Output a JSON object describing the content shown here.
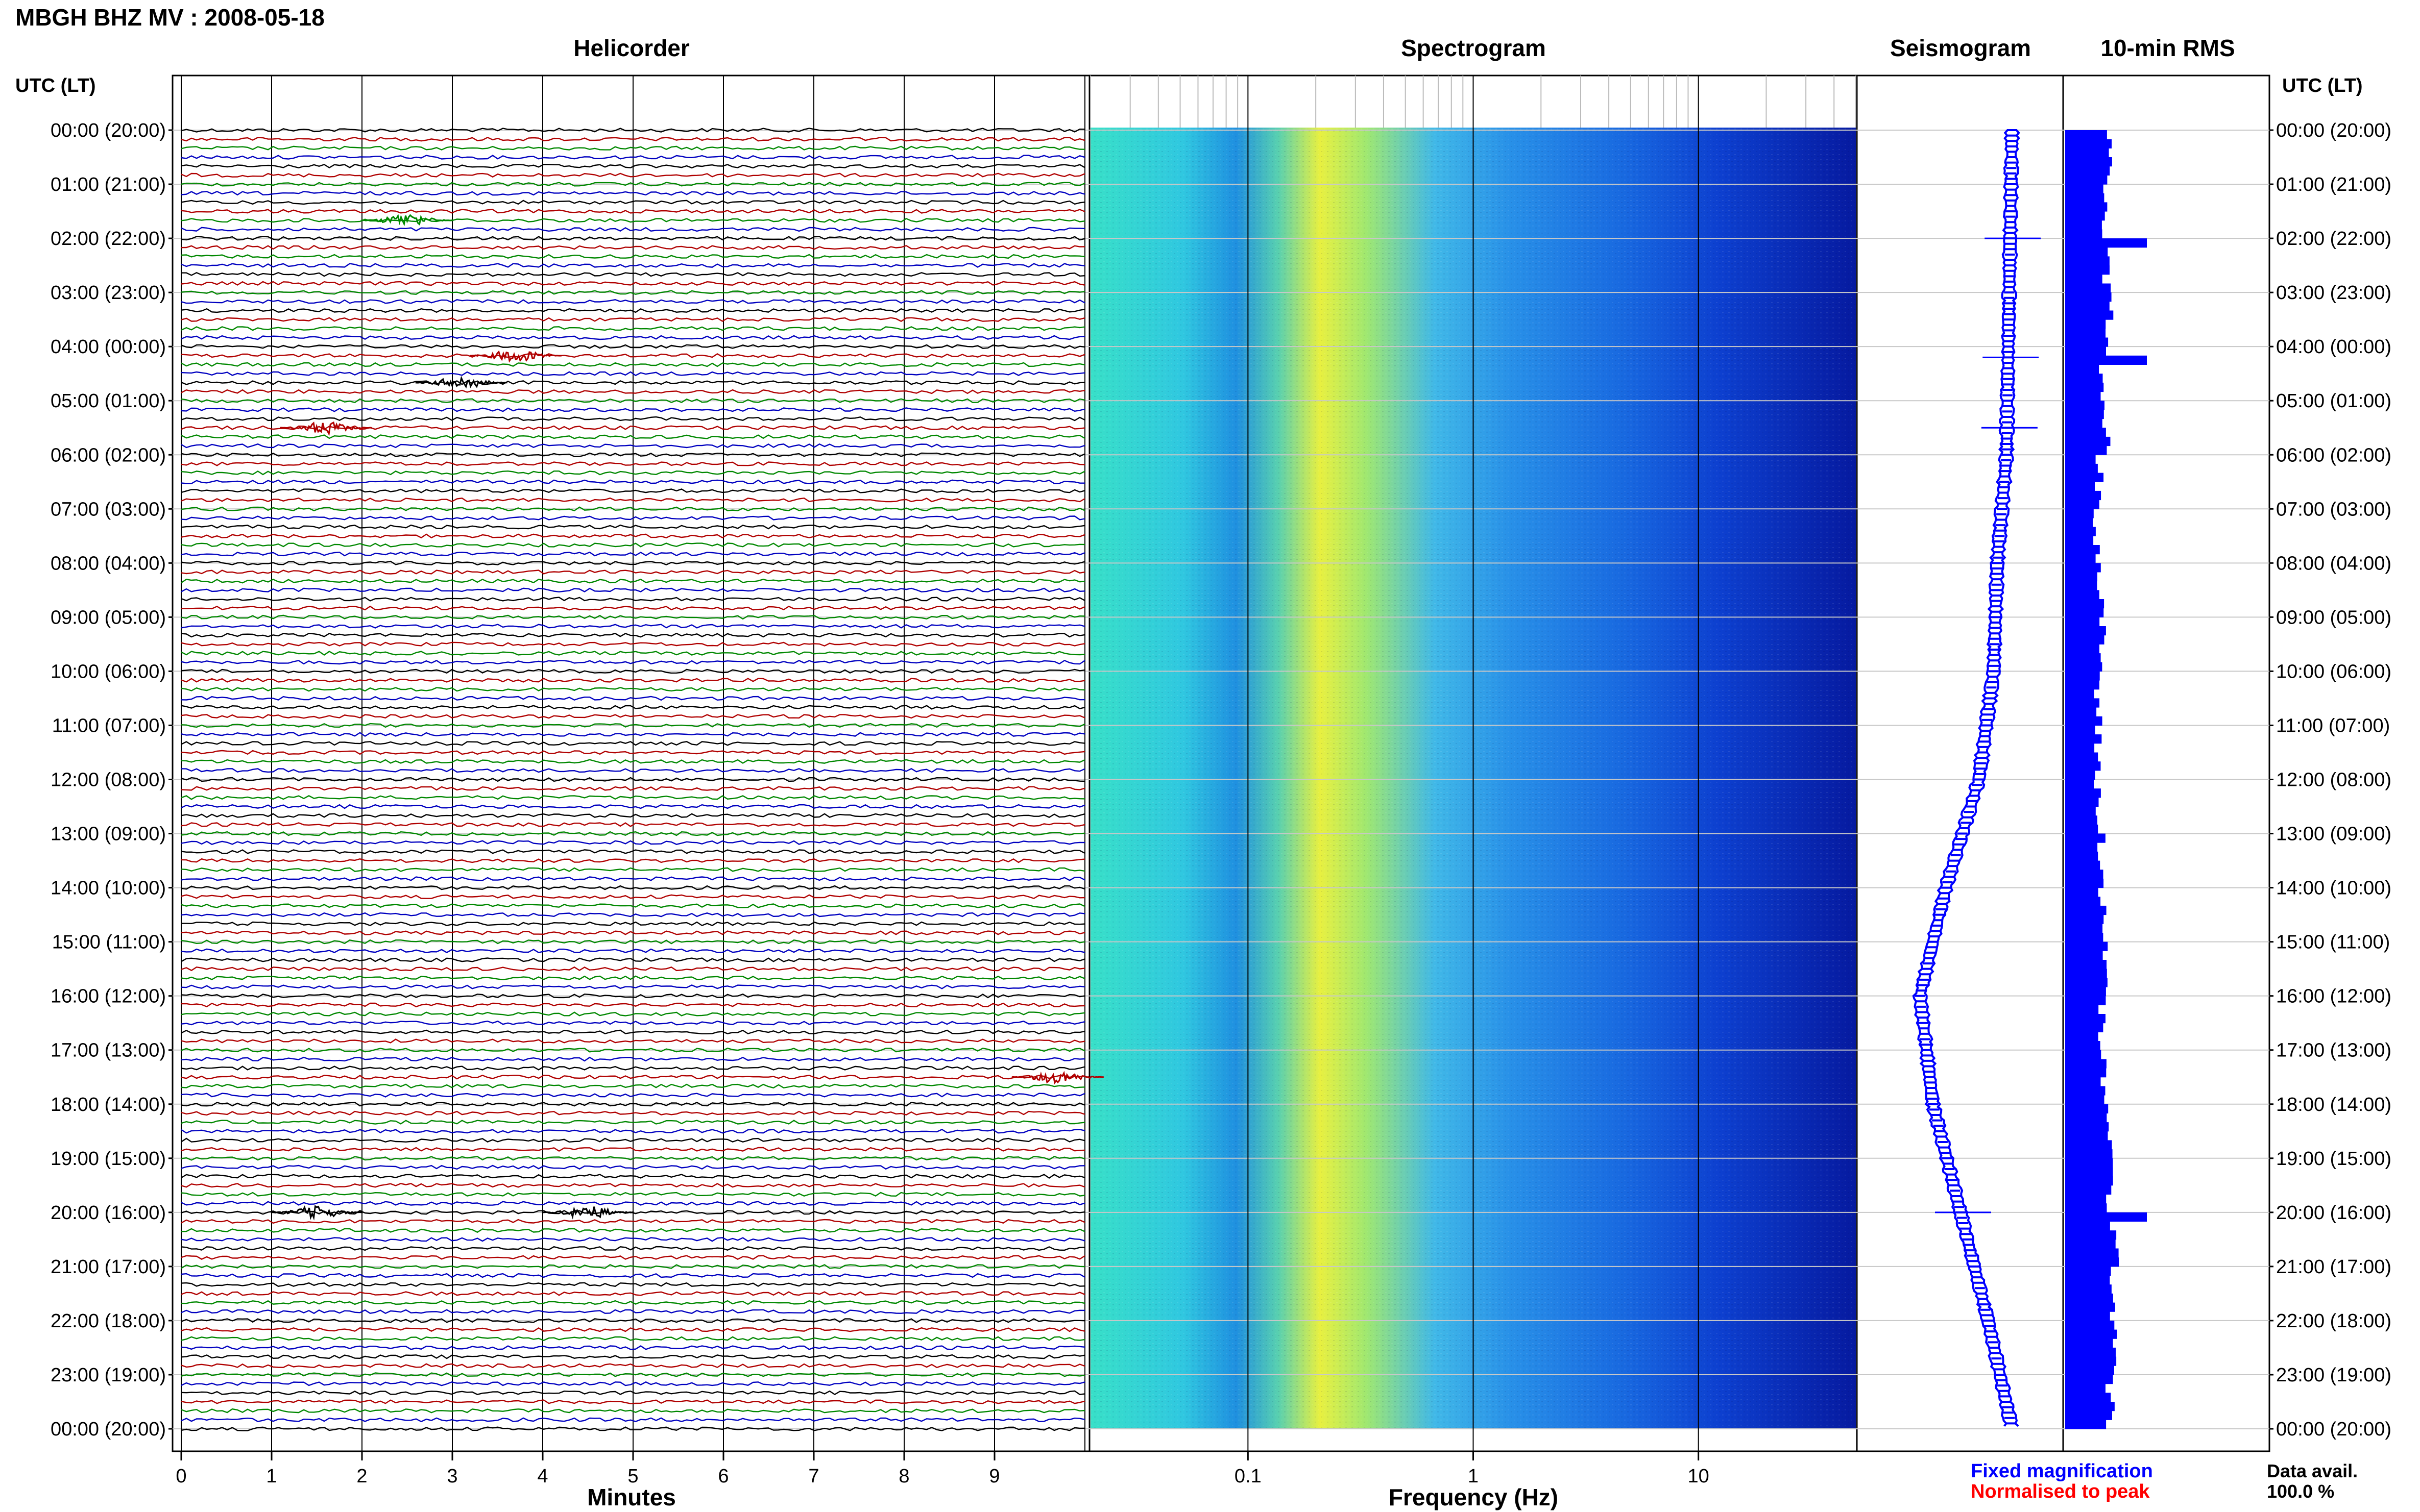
{
  "header": {
    "title": "MBGH BHZ MV : 2008-05-18",
    "left_axis_label": "UTC (LT)",
    "right_axis_label": "UTC (LT)"
  },
  "panels": {
    "helicorder": "Helicorder",
    "spectrogram": "Spectrogram",
    "seismogram": "Seismogram",
    "rms": "10-min RMS"
  },
  "axes": {
    "helicorder_xlabel": "Minutes",
    "helicorder_ticks": [
      "0",
      "1",
      "2",
      "3",
      "4",
      "5",
      "6",
      "7",
      "8",
      "9"
    ],
    "spectrogram_xlabel": "Frequency (Hz)",
    "spectrogram_ticks": [
      "0.1",
      "1",
      "10"
    ]
  },
  "time_labels": [
    "00:00 (20:00)",
    "01:00 (21:00)",
    "02:00 (22:00)",
    "03:00 (23:00)",
    "04:00 (00:00)",
    "05:00 (01:00)",
    "06:00 (02:00)",
    "07:00 (03:00)",
    "08:00 (04:00)",
    "09:00 (05:00)",
    "10:00 (06:00)",
    "11:00 (07:00)",
    "12:00 (08:00)",
    "13:00 (09:00)",
    "14:00 (10:00)",
    "15:00 (11:00)",
    "16:00 (12:00)",
    "17:00 (13:00)",
    "18:00 (14:00)",
    "19:00 (15:00)",
    "20:00 (16:00)",
    "21:00 (17:00)",
    "22:00 (18:00)",
    "23:00 (19:00)",
    "00:00 (20:00)"
  ],
  "legend": {
    "fixed": "Fixed magnification",
    "normalised": "Normalised to peak",
    "fixed_color": "#0000ff",
    "normalised_color": "#ff0000"
  },
  "data_avail": {
    "label": "Data avail.",
    "value": "100.0 %"
  },
  "colors": {
    "trace_cycle": [
      "#000000",
      "#b00000",
      "#008800",
      "#0000c0"
    ],
    "rms_bar": "#0000ff",
    "seismogram": "#0000ff"
  },
  "chart_data": {
    "type": "heatmap",
    "panels": [
      "Helicorder",
      "Spectrogram",
      "Seismogram",
      "10-min RMS"
    ],
    "y_labels": [
      "00:00 (20:00)",
      "01:00 (21:00)",
      "02:00 (22:00)",
      "03:00 (23:00)",
      "04:00 (00:00)",
      "05:00 (01:00)",
      "06:00 (02:00)",
      "07:00 (03:00)",
      "08:00 (04:00)",
      "09:00 (05:00)",
      "10:00 (06:00)",
      "11:00 (07:00)",
      "12:00 (08:00)",
      "13:00 (09:00)",
      "14:00 (10:00)",
      "15:00 (11:00)",
      "16:00 (12:00)",
      "17:00 (13:00)",
      "18:00 (14:00)",
      "19:00 (15:00)",
      "20:00 (16:00)",
      "21:00 (17:00)",
      "22:00 (18:00)",
      "23:00 (19:00)",
      "00:00 (20:00)"
    ],
    "helicorder": {
      "xlabel": "Minutes",
      "xlim": [
        0,
        10
      ],
      "lines_per_hour": 6,
      "events": [
        {
          "hour": 1.7,
          "minute": 2.5
        },
        {
          "hour": 4.1,
          "minute": 3.7
        },
        {
          "hour": 4.6,
          "minute": 3.1
        },
        {
          "hour": 5.45,
          "minute": 1.6
        },
        {
          "hour": 17.5,
          "minute": 9.7
        },
        {
          "hour": 20.0,
          "minute": 1.5
        },
        {
          "hour": 20.0,
          "minute": 4.5
        }
      ]
    },
    "spectrogram": {
      "xlabel": "Frequency (Hz)",
      "xscale": "log",
      "xlim": [
        0.02,
        50
      ]
    },
    "seismogram": {
      "x": [
        0,
        2,
        4,
        6,
        8,
        10,
        12,
        14,
        16,
        18,
        20,
        22,
        24
      ],
      "offset": [
        0.78,
        0.77,
        0.76,
        0.75,
        0.7,
        0.68,
        0.6,
        0.42,
        0.28,
        0.35,
        0.5,
        0.65,
        0.78
      ],
      "spikes_hour": [
        2.0,
        4.2,
        5.5,
        20.0
      ]
    },
    "rms": {
      "x": [
        0,
        1,
        2,
        3,
        4,
        5,
        6,
        7,
        8,
        9,
        10,
        11,
        12,
        13,
        14,
        15,
        16,
        17,
        18,
        19,
        20,
        21,
        22,
        23
      ],
      "level": [
        0.55,
        0.5,
        0.5,
        0.55,
        0.45,
        0.5,
        0.42,
        0.4,
        0.42,
        0.45,
        0.4,
        0.4,
        0.4,
        0.45,
        0.45,
        0.5,
        0.45,
        0.45,
        0.55,
        0.55,
        0.6,
        0.6,
        0.62,
        0.55
      ],
      "peaks_hour": [
        2.0,
        4.2,
        20.0
      ]
    }
  }
}
